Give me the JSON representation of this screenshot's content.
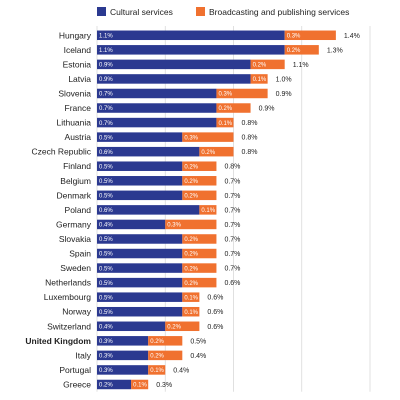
{
  "colors": {
    "cultural": "#2b3990",
    "broadcasting": "#f0712f",
    "grid": "#d9d9d9"
  },
  "chart_data": {
    "type": "bar",
    "orientation": "horizontal",
    "stacked": true,
    "legend_position": "top",
    "grid": true,
    "xlim": [
      0,
      1.6
    ],
    "categories": [
      "Hungary",
      "Iceland",
      "Estonia",
      "Latvia",
      "Slovenia",
      "France",
      "Lithuania",
      "Austria",
      "Czech Republic",
      "Finland",
      "Belgium",
      "Denmark",
      "Poland",
      "Germany",
      "Slovakia",
      "Spain",
      "Sweden",
      "Netherlands",
      "Luxembourg",
      "Norway",
      "Switzerland",
      "United Kingdom",
      "Italy",
      "Portugal",
      "Greece"
    ],
    "highlight": "United Kingdom",
    "series": [
      {
        "name": "Cultural services",
        "values": [
          1.1,
          1.1,
          0.9,
          0.9,
          0.7,
          0.7,
          0.7,
          0.5,
          0.6,
          0.5,
          0.5,
          0.5,
          0.6,
          0.4,
          0.5,
          0.5,
          0.5,
          0.5,
          0.5,
          0.5,
          0.4,
          0.3,
          0.3,
          0.3,
          0.2
        ],
        "labels": [
          "1.1%",
          "1.1%",
          "0.9%",
          "0.9%",
          "0.7%",
          "0.7%",
          "0.7%",
          "0.5%",
          "0.6%",
          "0.5%",
          "0.5%",
          "0.5%",
          "0.6%",
          "0.4%",
          "0.5%",
          "0.5%",
          "0.5%",
          "0.5%",
          "0.5%",
          "0.5%",
          "0.4%",
          "0.3%",
          "0.3%",
          "0.3%",
          "0.2%"
        ]
      },
      {
        "name": "Broadcasting and publishing services",
        "values": [
          0.3,
          0.2,
          0.2,
          0.1,
          0.3,
          0.2,
          0.1,
          0.3,
          0.2,
          0.2,
          0.2,
          0.2,
          0.1,
          0.3,
          0.2,
          0.2,
          0.2,
          0.2,
          0.1,
          0.1,
          0.2,
          0.2,
          0.2,
          0.1,
          0.1
        ],
        "labels": [
          "0.3%",
          "0.2%",
          "0.2%",
          "0.1%",
          "0.3%",
          "0.2%",
          "0.1%",
          "0.3%",
          "0.2%",
          "0.2%",
          "0.2%",
          "0.2%",
          "0.1%",
          "0.3%",
          "0.2%",
          "0.2%",
          "0.2%",
          "0.2%",
          "0.1%",
          "0.1%",
          "0.2%",
          "0.2%",
          "0.2%",
          "0.1%",
          "0.1%"
        ]
      }
    ],
    "totals": [
      1.4,
      1.3,
      1.1,
      1.0,
      0.9,
      0.9,
      0.8,
      0.8,
      0.8,
      0.8,
      0.7,
      0.7,
      0.7,
      0.7,
      0.7,
      0.7,
      0.7,
      0.6,
      0.6,
      0.6,
      0.6,
      0.5,
      0.4,
      0.4,
      0.3
    ],
    "total_labels": [
      "1.4%",
      "1.3%",
      "1.1%",
      "1.0%",
      "0.9%",
      "0.9%",
      "0.8%",
      "0.8%",
      "0.8%",
      "0.8%",
      "0.7%",
      "0.7%",
      "0.7%",
      "0.7%",
      "0.7%",
      "0.7%",
      "0.7%",
      "0.6%",
      "0.6%",
      "0.6%",
      "0.6%",
      "0.5%",
      "0.4%",
      "0.4%",
      "0.3%"
    ]
  }
}
